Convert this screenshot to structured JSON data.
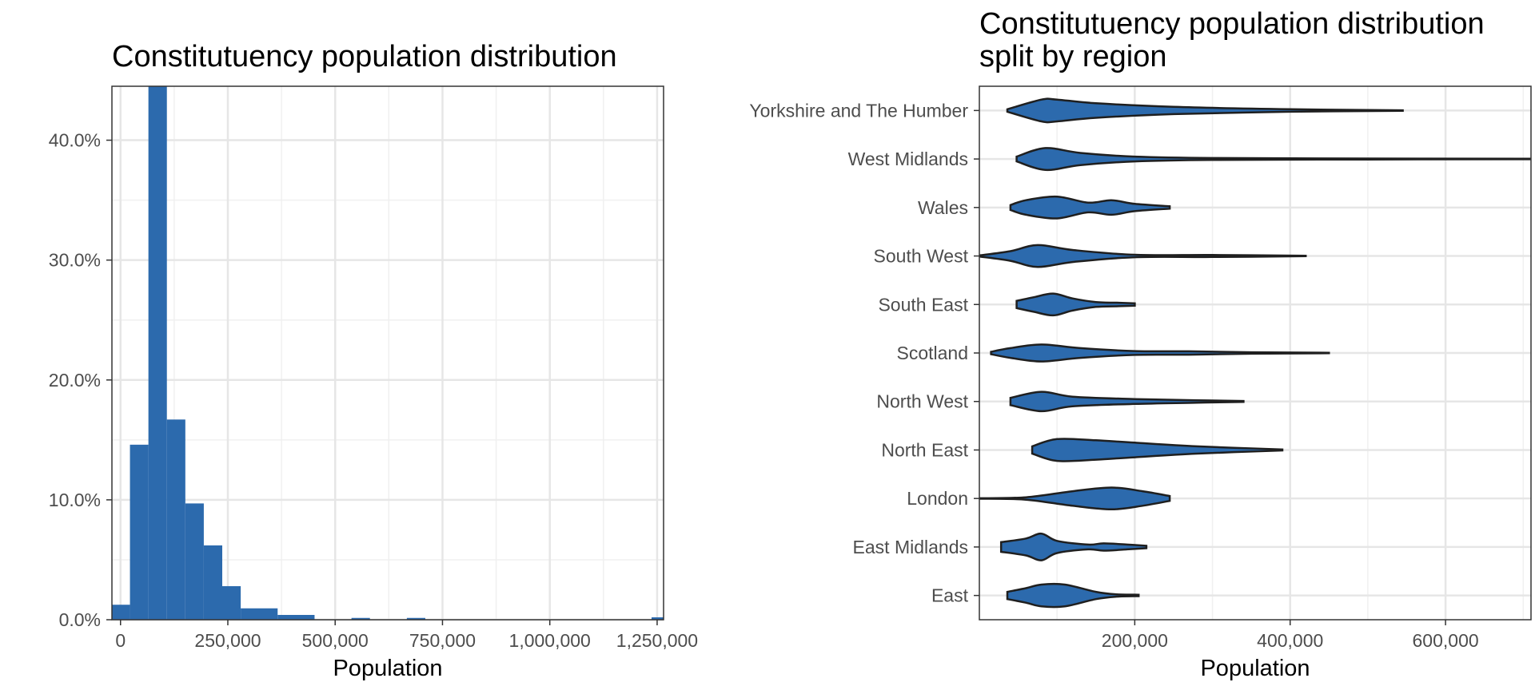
{
  "chart_data": [
    {
      "type": "bar",
      "subtype": "histogram",
      "title": "Constitutuency population distribution",
      "xlabel": "Population",
      "ylabel": "",
      "xlim": [
        -20000,
        1265000
      ],
      "ylim": [
        0,
        0.445
      ],
      "grid": true,
      "x_ticks": [
        {
          "value": 0,
          "label": "0"
        },
        {
          "value": 250000,
          "label": "250,000"
        },
        {
          "value": 500000,
          "label": "500,000"
        },
        {
          "value": 750000,
          "label": "750,000"
        },
        {
          "value": 1000000,
          "label": "1,000,000"
        },
        {
          "value": 1250000,
          "label": "1,250,000"
        }
      ],
      "y_ticks": [
        {
          "value": 0,
          "label": "0.0%"
        },
        {
          "value": 0.1,
          "label": "10.0%"
        },
        {
          "value": 0.2,
          "label": "20.0%"
        },
        {
          "value": 0.3,
          "label": "30.0%"
        },
        {
          "value": 0.4,
          "label": "40.0%"
        }
      ],
      "bar_color": "#2c6aad",
      "bins": [
        {
          "x0": -20000,
          "x1": 22000,
          "value": 0.0125
        },
        {
          "x0": 22000,
          "x1": 65000,
          "value": 0.146
        },
        {
          "x0": 65000,
          "x1": 108000,
          "value": 0.445
        },
        {
          "x0": 108000,
          "x1": 151000,
          "value": 0.167
        },
        {
          "x0": 151000,
          "x1": 194000,
          "value": 0.097
        },
        {
          "x0": 194000,
          "x1": 237000,
          "value": 0.062
        },
        {
          "x0": 237000,
          "x1": 280000,
          "value": 0.028
        },
        {
          "x0": 280000,
          "x1": 366000,
          "value": 0.0095
        },
        {
          "x0": 366000,
          "x1": 452000,
          "value": 0.004
        },
        {
          "x0": 538000,
          "x1": 581000,
          "value": 0.0015
        },
        {
          "x0": 667000,
          "x1": 710000,
          "value": 0.0015
        },
        {
          "x0": 1237000,
          "x1": 1280000,
          "value": 0.002
        }
      ]
    },
    {
      "type": "violin",
      "title": "Constitutuency population distribution\nsplit by region",
      "xlabel": "Population",
      "ylabel": "",
      "xlim": [
        0,
        710000
      ],
      "grid": true,
      "x_ticks": [
        {
          "value": 200000,
          "label": "200,000"
        },
        {
          "value": 400000,
          "label": "400,000"
        },
        {
          "value": 600000,
          "label": "600,000"
        }
      ],
      "fill_color": "#2c6aad",
      "categories": [
        "Yorkshire and The Humber",
        "West Midlands",
        "Wales",
        "South West",
        "South East",
        "Scotland",
        "North West",
        "North East",
        "London",
        "East Midlands",
        "East"
      ],
      "series": [
        {
          "name": "Yorkshire and The Humber",
          "profile": [
            [
              36000,
              0.05
            ],
            [
              80000,
              0.45
            ],
            [
              100000,
              0.45
            ],
            [
              150000,
              0.3
            ],
            [
              250000,
              0.15
            ],
            [
              400000,
              0.05
            ],
            [
              545000,
              0.01
            ]
          ]
        },
        {
          "name": "West Midlands",
          "profile": [
            [
              48000,
              0.1
            ],
            [
              85000,
              0.45
            ],
            [
              130000,
              0.25
            ],
            [
              200000,
              0.1
            ],
            [
              300000,
              0.04
            ],
            [
              500000,
              0.02
            ],
            [
              710000,
              0.01
            ]
          ]
        },
        {
          "name": "Wales",
          "profile": [
            [
              40000,
              0.1
            ],
            [
              60000,
              0.3
            ],
            [
              100000,
              0.45
            ],
            [
              140000,
              0.2
            ],
            [
              170000,
              0.3
            ],
            [
              200000,
              0.15
            ],
            [
              245000,
              0.05
            ]
          ]
        },
        {
          "name": "South West",
          "profile": [
            [
              0,
              0.02
            ],
            [
              40000,
              0.2
            ],
            [
              75000,
              0.45
            ],
            [
              120000,
              0.25
            ],
            [
              200000,
              0.05
            ],
            [
              300000,
              0.04
            ],
            [
              420000,
              0.01
            ]
          ]
        },
        {
          "name": "South East",
          "profile": [
            [
              48000,
              0.15
            ],
            [
              70000,
              0.3
            ],
            [
              95000,
              0.45
            ],
            [
              120000,
              0.25
            ],
            [
              150000,
              0.1
            ],
            [
              180000,
              0.07
            ],
            [
              200000,
              0.05
            ]
          ]
        },
        {
          "name": "Scotland",
          "profile": [
            [
              15000,
              0.05
            ],
            [
              40000,
              0.2
            ],
            [
              80000,
              0.35
            ],
            [
              130000,
              0.2
            ],
            [
              200000,
              0.08
            ],
            [
              270000,
              0.07
            ],
            [
              350000,
              0.03
            ],
            [
              450000,
              0.01
            ]
          ]
        },
        {
          "name": "North West",
          "profile": [
            [
              40000,
              0.15
            ],
            [
              80000,
              0.4
            ],
            [
              120000,
              0.2
            ],
            [
              200000,
              0.1
            ],
            [
              280000,
              0.05
            ],
            [
              340000,
              0.02
            ]
          ]
        },
        {
          "name": "North East",
          "profile": [
            [
              68000,
              0.15
            ],
            [
              100000,
              0.45
            ],
            [
              150000,
              0.4
            ],
            [
              200000,
              0.3
            ],
            [
              280000,
              0.15
            ],
            [
              390000,
              0.02
            ]
          ]
        },
        {
          "name": "London",
          "profile": [
            [
              0,
              0.01
            ],
            [
              60000,
              0.05
            ],
            [
              120000,
              0.3
            ],
            [
              170000,
              0.45
            ],
            [
              210000,
              0.3
            ],
            [
              245000,
              0.1
            ]
          ]
        },
        {
          "name": "East Midlands",
          "profile": [
            [
              28000,
              0.2
            ],
            [
              60000,
              0.35
            ],
            [
              80000,
              0.55
            ],
            [
              100000,
              0.25
            ],
            [
              140000,
              0.1
            ],
            [
              160000,
              0.15
            ],
            [
              190000,
              0.1
            ],
            [
              215000,
              0.05
            ]
          ]
        },
        {
          "name": "East",
          "profile": [
            [
              36000,
              0.15
            ],
            [
              60000,
              0.3
            ],
            [
              80000,
              0.45
            ],
            [
              110000,
              0.45
            ],
            [
              150000,
              0.15
            ],
            [
              175000,
              0.05
            ],
            [
              205000,
              0.03
            ]
          ]
        }
      ]
    }
  ]
}
